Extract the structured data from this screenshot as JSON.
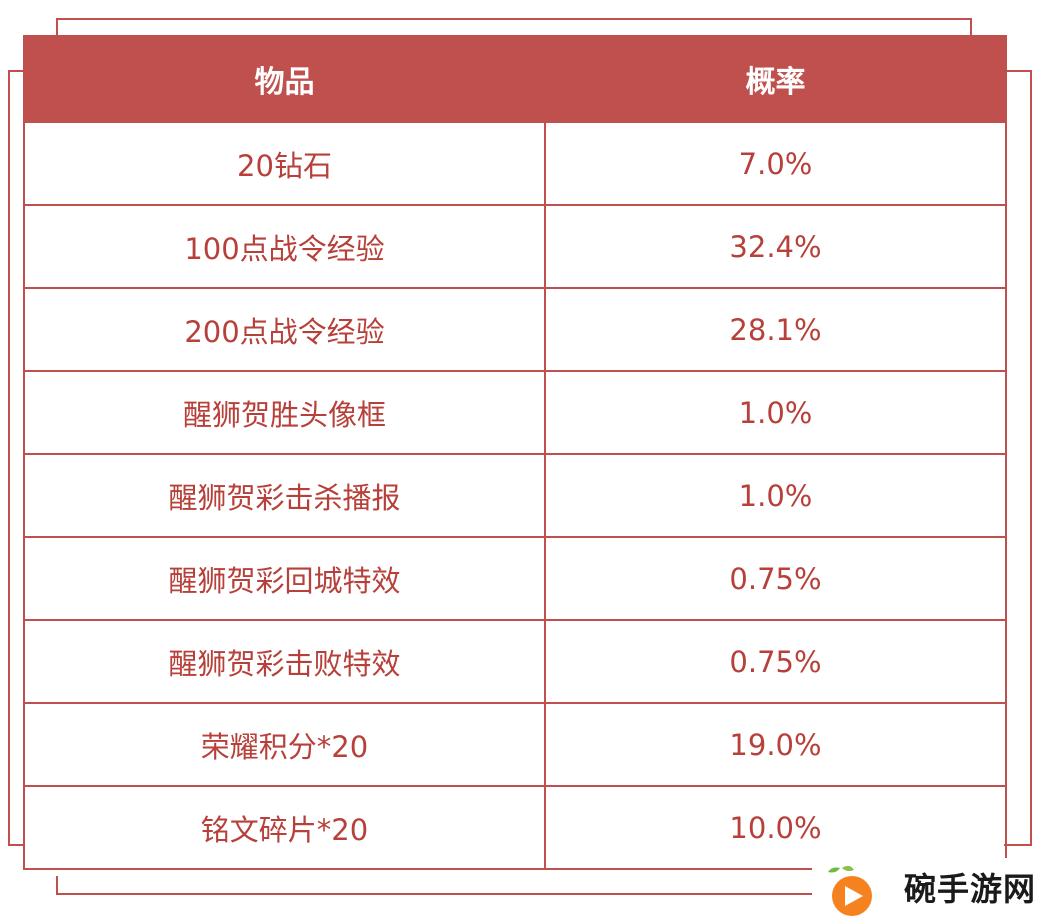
{
  "table": {
    "headers": [
      "物品",
      "概率"
    ],
    "rows": [
      {
        "item": "20钻石",
        "prob": "7.0%"
      },
      {
        "item": "100点战令经验",
        "prob": "32.4%"
      },
      {
        "item": "200点战令经验",
        "prob": "28.1%"
      },
      {
        "item": "醒狮贺胜头像框",
        "prob": "1.0%"
      },
      {
        "item": "醒狮贺彩击杀播报",
        "prob": "1.0%"
      },
      {
        "item": "醒狮贺彩回城特效",
        "prob": "0.75%"
      },
      {
        "item": "醒狮贺彩击败特效",
        "prob": "0.75%"
      },
      {
        "item": "荣耀积分*20",
        "prob": "19.0%"
      },
      {
        "item": "铭文碎片*20",
        "prob": "10.0%"
      }
    ]
  },
  "watermark": {
    "text": "碗手游网",
    "icon": "orange-play-logo-icon"
  },
  "colors": {
    "accent": "#c0504d",
    "text": "#b7403a",
    "header_text": "#ffffff"
  }
}
